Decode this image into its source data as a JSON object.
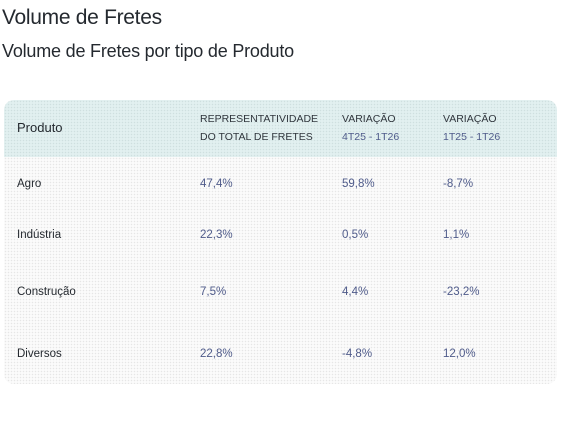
{
  "header": {
    "title": "Volume de Fretes",
    "subtitle": "Volume de Fretes por tipo de Produto"
  },
  "chart_data": {
    "type": "table",
    "columns": [
      {
        "line1": "Produto",
        "line2": ""
      },
      {
        "line1": "REPRESENTATIVIDADE",
        "line2": "DO TOTAL DE FRETES"
      },
      {
        "line1": "VARIAÇÃO",
        "line2": "4T25 - 1T26"
      },
      {
        "line1": "VARIAÇÃO",
        "line2": "1T25 - 1T26"
      }
    ],
    "rows": [
      {
        "produto": "Agro",
        "representatividade": "47,4%",
        "variacao_4t25_1t26": "59,8%",
        "variacao_1t25_1t26": "-8,7%"
      },
      {
        "produto": "Indústria",
        "representatividade": "22,3%",
        "variacao_4t25_1t26": "0,5%",
        "variacao_1t25_1t26": "1,1%"
      },
      {
        "produto": "Construção",
        "representatividade": "7,5%",
        "variacao_4t25_1t26": "4,4%",
        "variacao_1t25_1t26": "-23,2%"
      },
      {
        "produto": "Diversos",
        "representatividade": "22,8%",
        "variacao_4t25_1t26": "-4,8%",
        "variacao_1t25_1t26": "12,0%"
      }
    ]
  },
  "colors": {
    "header_background": "#e2f0f0",
    "value_text": "#4f5b8a",
    "label_text": "#24292f"
  }
}
